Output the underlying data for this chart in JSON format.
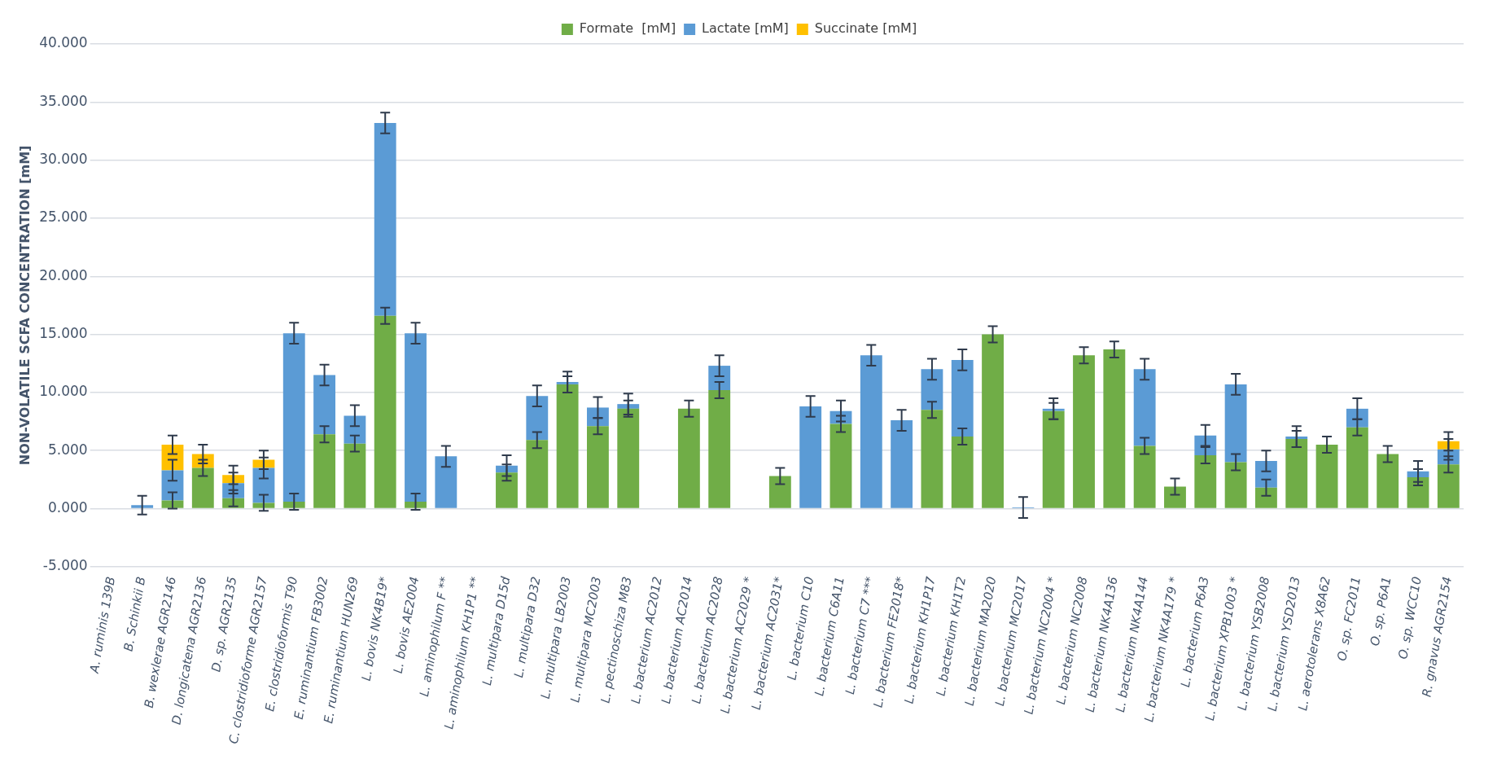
{
  "chart_data": {
    "type": "bar",
    "stacked": true,
    "ylabel": "NON-VOLATILE SCFA CONCENTRATION [mM]",
    "legend": "top",
    "grid": "y",
    "categories": [
      "A. ruminis 139B",
      "B. Schinkii B",
      "B. wexlerae AGR2146",
      "D. longicatena AGR2136",
      "D. sp. AGR2135",
      "C. clostridioforme AGR2157",
      "E. clostridioformis T90",
      "E. ruminantium FB3002",
      "E. ruminantium HUN269",
      "L. bovis NK4B19*",
      "L. bovis AE2004",
      "L. aminophilum F **",
      "L. aminophilum KH1P1 **",
      "L. multipara D15d",
      "L. multipara D32",
      "L. multipara LB2003",
      "L. multipara MC2003",
      "L. pectinoschiza M83",
      "L. bacterium AC2012",
      "L. bacterium AC2014",
      "L. bacterium AC2028",
      "L. bacterium AC2029 *",
      "L. bacterium AC2031*",
      "L. bacterium C10",
      "L. bacterium C6A11",
      "L. bacterium C7 ***",
      "L. bacterium FE2018*",
      "L. bacterium KH1P17",
      "L. bacterium KH1T2",
      "L. bacterium MA2020",
      "L. bacterium MC2017",
      "L. bacterium NC2004 *",
      "L. bacterium NC2008",
      "L. bacterium NK4A136",
      "L. bacterium NK4A144",
      "L. bacterium NK4A179 *",
      "L. bacterium P6A3",
      "L. bacterium XPB1003 *",
      "L. bacterium YSB2008",
      "L. bacterium YSD2013",
      "L. aerotolerans X8A62",
      "O. sp. FC2011",
      "O. sp. P6A1",
      "O. sp. WCC10",
      "R. gnavus AGR2154"
    ],
    "series": [
      {
        "name": "Formate  [mM]",
        "color": "#70ad47",
        "values": [
          0,
          0,
          0.7,
          3.5,
          0.9,
          0.5,
          0.6,
          6.4,
          5.6,
          16.6,
          0.6,
          0,
          0,
          3.1,
          5.9,
          10.7,
          7.1,
          8.6,
          0,
          8.6,
          10.2,
          0,
          2.8,
          0,
          7.3,
          0,
          0,
          8.5,
          6.2,
          15.0,
          0,
          8.4,
          13.2,
          13.7,
          5.4,
          1.9,
          4.6,
          4.0,
          1.8,
          6.0,
          5.5,
          7.0,
          4.7,
          2.7,
          3.8
        ],
        "errors": [
          null,
          null,
          0.7,
          0.7,
          0.7,
          0.7,
          0.7,
          0.7,
          0.7,
          0.7,
          0.7,
          null,
          null,
          0.7,
          0.7,
          0.7,
          0.7,
          0.7,
          null,
          0.7,
          0.7,
          null,
          0.7,
          null,
          0.7,
          null,
          null,
          0.7,
          0.7,
          0.7,
          null,
          0.7,
          0.7,
          0.7,
          0.7,
          0.7,
          0.7,
          0.7,
          0.7,
          0.7,
          0.7,
          0.7,
          0.7,
          0.7,
          0.7
        ]
      },
      {
        "name": "Lactate [mM]",
        "color": "#5b9bd5",
        "values": [
          0,
          0.3,
          2.6,
          0,
          1.3,
          3.0,
          14.5,
          5.1,
          2.4,
          16.6,
          14.5,
          4.5,
          0,
          0.6,
          3.8,
          0.2,
          1.6,
          0.4,
          0,
          0,
          2.1,
          0,
          0,
          8.8,
          1.1,
          13.2,
          7.6,
          3.5,
          6.6,
          0,
          0.1,
          0.2,
          0,
          0,
          6.6,
          0,
          1.7,
          6.7,
          2.3,
          0.2,
          0,
          1.6,
          0,
          0.5,
          1.3
        ],
        "errors": [
          null,
          0.8,
          0.9,
          null,
          0.9,
          0.9,
          0.9,
          0.9,
          0.9,
          0.9,
          0.9,
          0.9,
          null,
          0.9,
          0.9,
          0.9,
          0.9,
          0.9,
          null,
          null,
          0.9,
          null,
          null,
          0.9,
          0.9,
          0.9,
          0.9,
          0.9,
          0.9,
          null,
          0.9,
          0.9,
          null,
          null,
          0.9,
          null,
          0.9,
          0.9,
          0.9,
          0.9,
          null,
          0.9,
          null,
          0.9,
          0.9
        ]
      },
      {
        "name": "Succinate [mM]",
        "color": "#ffc000",
        "values": [
          0,
          0,
          2.2,
          1.2,
          0.7,
          0.7,
          0,
          0,
          0,
          0,
          0,
          0,
          0,
          0,
          0,
          0,
          0,
          0,
          0,
          0,
          0,
          0,
          0,
          0,
          0,
          0,
          0,
          0,
          0,
          0,
          0,
          0,
          0,
          0,
          0,
          0,
          0,
          0,
          0,
          0,
          0,
          0,
          0,
          0,
          0.7
        ],
        "errors": [
          null,
          null,
          0.8,
          0.8,
          0.8,
          0.8,
          null,
          null,
          null,
          null,
          null,
          null,
          null,
          null,
          null,
          null,
          null,
          null,
          null,
          null,
          null,
          null,
          null,
          null,
          null,
          null,
          null,
          null,
          null,
          null,
          null,
          null,
          null,
          null,
          null,
          null,
          null,
          null,
          null,
          null,
          null,
          null,
          null,
          null,
          0.8
        ]
      }
    ],
    "ylim": [
      -5,
      40
    ],
    "yticks": [
      {
        "value": -5,
        "label": "-5.000"
      },
      {
        "value": 0,
        "label": "0.000"
      },
      {
        "value": 5,
        "label": "5.000"
      },
      {
        "value": 10,
        "label": "10.000"
      },
      {
        "value": 15,
        "label": "15.000"
      },
      {
        "value": 20,
        "label": "20.000"
      },
      {
        "value": 25,
        "label": "25.000"
      },
      {
        "value": 30,
        "label": "30.000"
      },
      {
        "value": 35,
        "label": "35.000"
      },
      {
        "value": 40,
        "label": "40.000"
      }
    ]
  }
}
